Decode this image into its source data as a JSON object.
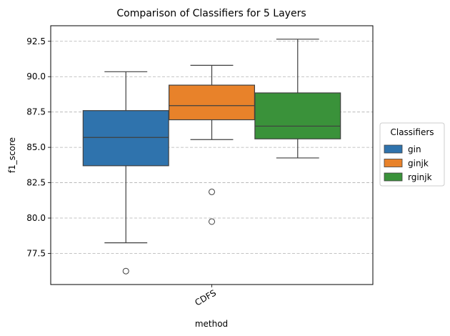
{
  "chart_data": {
    "type": "box",
    "title": "Comparison of Classifiers for 5 Layers",
    "xlabel": "method",
    "ylabel": "f1_score",
    "categories": [
      "CDFS"
    ],
    "ylim": [
      75.3,
      93.6
    ],
    "yticks": [
      77.5,
      80.0,
      82.5,
      85.0,
      87.5,
      90.0,
      92.5
    ],
    "ytick_labels": [
      "77.5",
      "80.0",
      "82.5",
      "85.0",
      "87.5",
      "90.0",
      "92.5"
    ],
    "grid": "horizontal dashed",
    "legend": {
      "title": "Classifiers",
      "placement": "right, outside plot"
    },
    "series": [
      {
        "name": "gin",
        "color": "#2f73ad",
        "whisker_low": 78.25,
        "q1": 83.7,
        "median": 85.7,
        "q3": 87.6,
        "whisker_high": 90.35,
        "outliers": [
          76.25
        ]
      },
      {
        "name": "ginjk",
        "color": "#e8822a",
        "whisker_low": 85.55,
        "q1": 86.95,
        "median": 87.95,
        "q3": 89.4,
        "whisker_high": 90.8,
        "outliers": [
          81.85,
          79.75
        ]
      },
      {
        "name": "rginjk",
        "color": "#3a923a",
        "whisker_low": 84.25,
        "q1": 85.6,
        "median": 86.5,
        "q3": 88.85,
        "whisker_high": 92.65,
        "outliers": []
      }
    ]
  }
}
